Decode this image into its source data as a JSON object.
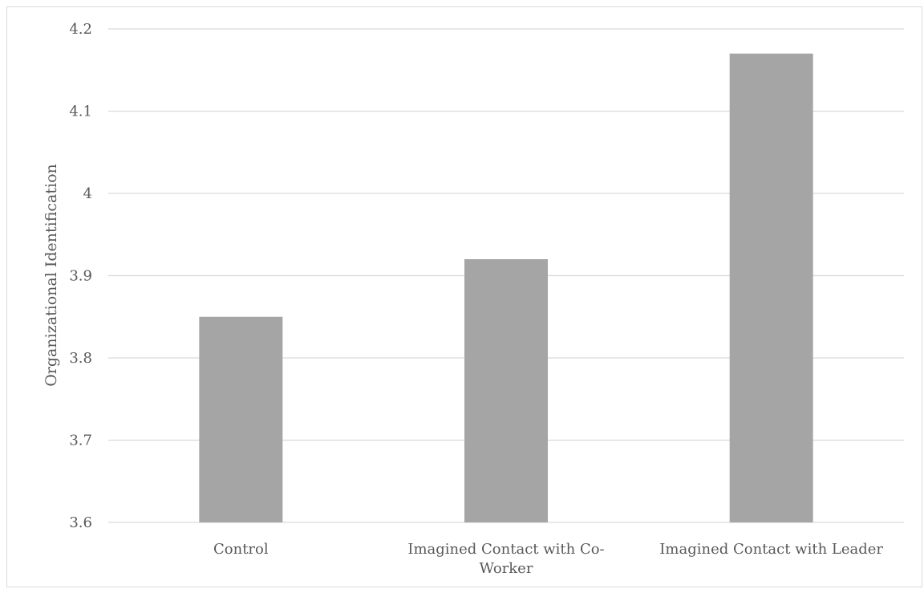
{
  "chart_data": {
    "type": "bar",
    "title": "",
    "xlabel": "",
    "ylabel": "Organizational Identification",
    "categories": [
      [
        "Control"
      ],
      [
        "Imagined Contact with Co-",
        "Worker"
      ],
      [
        "Imagined Contact with Leader"
      ]
    ],
    "values": [
      3.85,
      3.92,
      4.17
    ],
    "ylim": [
      3.6,
      4.2
    ],
    "yticks": [
      "3.6",
      "3.7",
      "3.8",
      "3.9",
      "4",
      "4.1",
      "4.2"
    ],
    "grid": true,
    "legend": "none",
    "colors": {
      "bar": "#a5a5a5",
      "grid": "#d9d9d9",
      "text": "#595959"
    }
  }
}
